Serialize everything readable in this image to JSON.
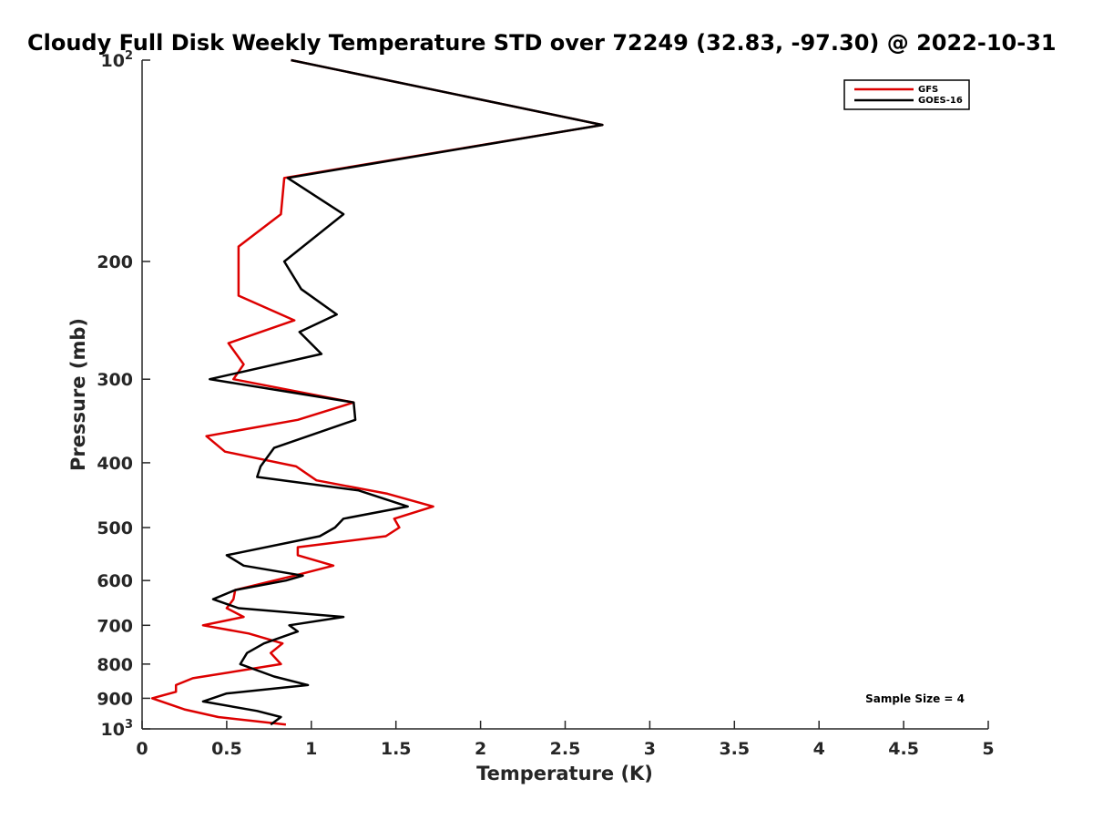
{
  "chart_data": {
    "type": "line",
    "title": "Cloudy Full Disk Weekly Temperature STD over 72249 (32.83, -97.30) @ 2022-10-31",
    "xlabel": "Temperature (K)",
    "ylabel": "Pressure (mb)",
    "xlim": [
      0,
      5
    ],
    "ylim": [
      100,
      1000
    ],
    "y_scale": "log",
    "y_reversed": true,
    "grid": false,
    "legend_position": "top-right",
    "x_ticks": [
      "0",
      "0.5",
      "1",
      "1.5",
      "2",
      "2.5",
      "3",
      "3.5",
      "4",
      "4.5",
      "5"
    ],
    "x_tick_values": [
      0,
      0.5,
      1,
      1.5,
      2,
      2.5,
      3,
      3.5,
      4,
      4.5,
      5
    ],
    "y_ticks": [
      {
        "value": 100,
        "base": "10",
        "exp": "2",
        "label": ""
      },
      {
        "value": 200,
        "label": "200"
      },
      {
        "value": 300,
        "label": "300"
      },
      {
        "value": 400,
        "label": "400"
      },
      {
        "value": 500,
        "label": "500"
      },
      {
        "value": 600,
        "label": "600"
      },
      {
        "value": 700,
        "label": "700"
      },
      {
        "value": 800,
        "label": "800"
      },
      {
        "value": 900,
        "label": "900"
      },
      {
        "value": 1000,
        "base": "10",
        "exp": "3",
        "label": ""
      }
    ],
    "annotation": "Sample Size = 4",
    "series": [
      {
        "name": "GFS",
        "color": "#dd0000",
        "points": [
          [
            0.88,
            100
          ],
          [
            2.72,
            125
          ],
          [
            0.84,
            150
          ],
          [
            0.82,
            170
          ],
          [
            0.57,
            190
          ],
          [
            0.57,
            225
          ],
          [
            0.9,
            245
          ],
          [
            0.51,
            265
          ],
          [
            0.6,
            285
          ],
          [
            0.54,
            300
          ],
          [
            1.25,
            325
          ],
          [
            0.92,
            345
          ],
          [
            0.38,
            365
          ],
          [
            0.49,
            385
          ],
          [
            0.91,
            405
          ],
          [
            1.03,
            425
          ],
          [
            1.45,
            445
          ],
          [
            1.72,
            465
          ],
          [
            1.49,
            485
          ],
          [
            1.52,
            500
          ],
          [
            1.44,
            515
          ],
          [
            0.92,
            535
          ],
          [
            0.92,
            550
          ],
          [
            1.13,
            570
          ],
          [
            0.9,
            590
          ],
          [
            0.55,
            620
          ],
          [
            0.54,
            640
          ],
          [
            0.5,
            660
          ],
          [
            0.6,
            680
          ],
          [
            0.36,
            700
          ],
          [
            0.63,
            720
          ],
          [
            0.83,
            745
          ],
          [
            0.76,
            770
          ],
          [
            0.82,
            800
          ],
          [
            0.3,
            840
          ],
          [
            0.2,
            860
          ],
          [
            0.2,
            880
          ],
          [
            0.06,
            900
          ],
          [
            0.25,
            935
          ],
          [
            0.45,
            960
          ],
          [
            0.85,
            985
          ]
        ]
      },
      {
        "name": "GOES-16",
        "color": "#000000",
        "points": [
          [
            0.88,
            100
          ],
          [
            2.72,
            125
          ],
          [
            0.86,
            150
          ],
          [
            1.19,
            170
          ],
          [
            0.84,
            200
          ],
          [
            0.94,
            220
          ],
          [
            1.15,
            240
          ],
          [
            0.93,
            255
          ],
          [
            1.06,
            275
          ],
          [
            0.4,
            300
          ],
          [
            1.25,
            325
          ],
          [
            1.26,
            345
          ],
          [
            0.78,
            380
          ],
          [
            0.7,
            405
          ],
          [
            0.68,
            420
          ],
          [
            1.28,
            440
          ],
          [
            1.57,
            465
          ],
          [
            1.19,
            485
          ],
          [
            1.14,
            500
          ],
          [
            1.05,
            515
          ],
          [
            0.5,
            550
          ],
          [
            0.6,
            570
          ],
          [
            0.95,
            590
          ],
          [
            0.85,
            600
          ],
          [
            0.55,
            620
          ],
          [
            0.42,
            640
          ],
          [
            0.57,
            660
          ],
          [
            1.19,
            680
          ],
          [
            0.87,
            700
          ],
          [
            0.92,
            715
          ],
          [
            0.72,
            745
          ],
          [
            0.62,
            770
          ],
          [
            0.58,
            800
          ],
          [
            0.78,
            835
          ],
          [
            0.98,
            860
          ],
          [
            0.5,
            885
          ],
          [
            0.36,
            910
          ],
          [
            0.68,
            940
          ],
          [
            0.82,
            960
          ],
          [
            0.76,
            985
          ]
        ]
      }
    ]
  }
}
